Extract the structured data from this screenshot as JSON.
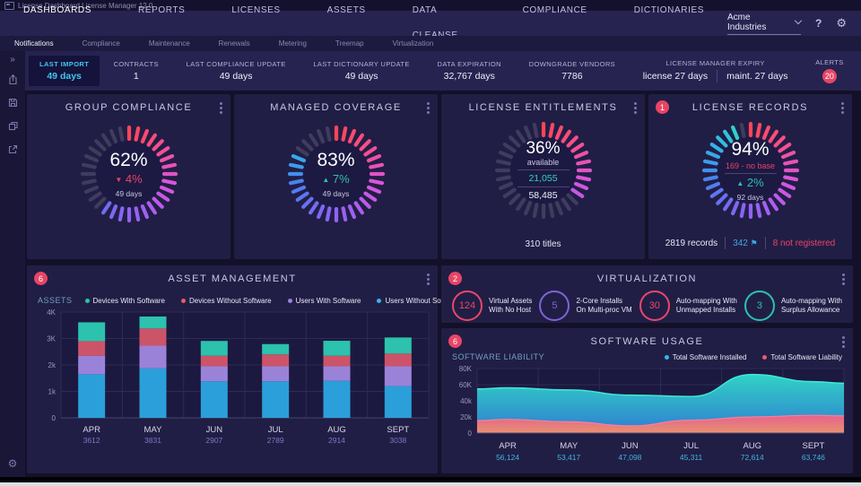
{
  "titlebar": {
    "title": "License Dashboard License Manager 12.0"
  },
  "navbar": {
    "items": [
      "DASHBOARDS",
      "REPORTS",
      "LICENSES",
      "ASSETS",
      "DATA CLEANSE",
      "COMPLIANCE",
      "DICTIONARIES"
    ],
    "active": "DASHBOARDS",
    "org_selector": "Acme Industries",
    "help_label": "?",
    "gear_icon": "settings-gear"
  },
  "subnav": {
    "items": [
      "Notifications",
      "Compliance",
      "Maintenance",
      "Renewals",
      "Metering",
      "Treemap",
      "Virtualization"
    ],
    "active": "Notifications"
  },
  "sidebar": {
    "expand_glyph": "»",
    "icons": [
      "share",
      "save",
      "copy",
      "open-external",
      "settings"
    ]
  },
  "stats": [
    {
      "label": "LAST IMPORT",
      "value": "49 days",
      "highlight": true
    },
    {
      "label": "CONTRACTS",
      "value": "1"
    },
    {
      "label": "LAST COMPLIANCE UPDATE",
      "value": "49 days"
    },
    {
      "label": "LAST DICTIONARY UPDATE",
      "value": "49 days"
    },
    {
      "label": "DATA EXPIRATION",
      "value": "32,767 days"
    },
    {
      "label": "DOWNGRADE VENDORS",
      "value": "7786"
    },
    {
      "label": "LICENSE MANAGER EXPIRY",
      "parts": [
        "license  27 days",
        "maint.  27 days"
      ]
    },
    {
      "label": "ALERTS",
      "badge": "20"
    }
  ],
  "gauge_palette": [
    "#ff4558",
    "#f5508f",
    "#d955d9",
    "#a55ef2",
    "#7a68f5",
    "#4a80f0",
    "#2fb9e8",
    "#2de0b8"
  ],
  "gauge_empty_color": "#3f3c5e",
  "accent": {
    "red": "#e84565",
    "teal": "#2cc2ad",
    "cyan": "#3fc8ec",
    "purple_val": "#7d76c4"
  },
  "gauges": [
    {
      "title": "GROUP COMPLIANCE",
      "pct": 62,
      "pct_label": "62%",
      "delta": "4%",
      "delta_dir": "down",
      "sub": "49 days"
    },
    {
      "title": "MANAGED COVERAGE",
      "pct": 83,
      "pct_label": "83%",
      "delta": "7%",
      "delta_dir": "up",
      "sub": "49 days"
    },
    {
      "title": "LICENSE ENTITLEMENTS",
      "pct": 36,
      "pct_label": "36%",
      "available_label": "available",
      "numerator": "21,055",
      "denominator": "58,485",
      "footer": "310 titles"
    },
    {
      "title": "LICENSE RECORDS",
      "pct": 94,
      "pct_label": "94%",
      "badge": "1",
      "note": "169 - no base",
      "delta": "2%",
      "delta_dir": "up",
      "sub": "92 days",
      "footer_records": "2819 records",
      "footer_flagged": "342",
      "footer_not_registered": "8 not registered"
    }
  ],
  "asset_chart": {
    "type": "stacked-bar",
    "badge": "6",
    "title": "ASSET MANAGEMENT",
    "axis_label": "ASSETS",
    "legend": [
      {
        "label": "Devices With Software",
        "color": "#2cc2ad"
      },
      {
        "label": "Devices Without Software",
        "color": "#e05c6e"
      },
      {
        "label": "Users With Software",
        "color": "#9b82d9"
      },
      {
        "label": "Users Without Software",
        "color": "#35b5e8"
      }
    ],
    "y_ticks": [
      "4K",
      "3K",
      "2k",
      "1k",
      "0"
    ],
    "y_max": 4000,
    "categories": [
      "APR",
      "MAY",
      "JUN",
      "JUL",
      "AUG",
      "SEPT"
    ],
    "totals": [
      "3612",
      "3831",
      "2907",
      "2789",
      "2914",
      "3038"
    ],
    "series": [
      {
        "name": "Users Without Software",
        "color": "#2b9fd9",
        "values": [
          1650,
          1870,
          1380,
          1380,
          1400,
          1200
        ]
      },
      {
        "name": "Users With Software",
        "color": "#9b82d9",
        "values": [
          700,
          860,
          570,
          570,
          550,
          750
        ]
      },
      {
        "name": "Devices Without Software",
        "color": "#cc5468",
        "values": [
          550,
          650,
          400,
          450,
          400,
          480
        ]
      },
      {
        "name": "Devices With Software",
        "color": "#2cc2ad",
        "values": [
          712,
          451,
          557,
          389,
          564,
          608
        ]
      }
    ]
  },
  "virtualization": {
    "badge": "2",
    "title": "VIRTUALIZATION",
    "items": [
      {
        "value": "124",
        "color": "#e8476c",
        "label": "Virtual Assets\nWith No Host"
      },
      {
        "value": "5",
        "color": "#7e64d9",
        "label": "2-Core Installs\nOn Multi-proc VM"
      },
      {
        "value": "30",
        "color": "#e8476c",
        "label": "Auto-mapping With\nUnmapped Installs"
      },
      {
        "value": "3",
        "color": "#2cc2ad",
        "label": "Auto-mapping With\nSurplus Allowance"
      }
    ]
  },
  "software_chart": {
    "type": "area",
    "badge": "6",
    "title": "SOFTWARE USAGE",
    "axis_label": "SOFTWARE LIABILITY",
    "legend": [
      {
        "label": "Total Software Installed",
        "color": "#35b5e8"
      },
      {
        "label": "Total Software Liability",
        "color": "#e85c7a"
      }
    ],
    "y_ticks": [
      "80K",
      "60K",
      "40k",
      "20k",
      "0"
    ],
    "y_max": 80000,
    "categories": [
      "APR",
      "MAY",
      "JUN",
      "JUL",
      "AUG",
      "SEPT"
    ],
    "value_labels": [
      "56,124",
      "53,417",
      "47,098",
      "45,311",
      "72,614",
      "63,746"
    ],
    "series": [
      {
        "name": "Total Software Installed",
        "values": [
          56124,
          53417,
          47098,
          45311,
          72614,
          63746
        ]
      },
      {
        "name": "Total Software Liability",
        "values": [
          17000,
          14000,
          9000,
          16000,
          20000,
          22000
        ]
      }
    ]
  }
}
